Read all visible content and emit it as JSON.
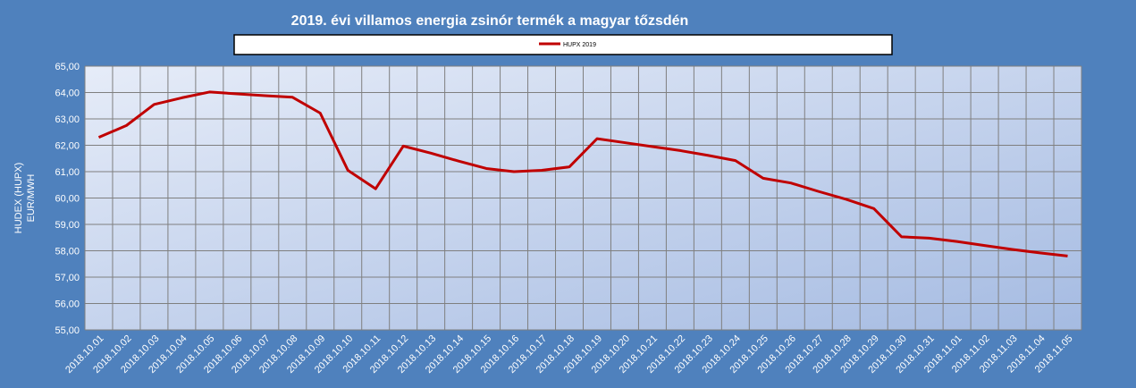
{
  "chart_data": {
    "type": "line",
    "title": "2019. évi villamos energia zsinór termék a magyar tőzsdén",
    "y_label_lines": [
      "HUDEX (HUPX)",
      "EUR/MWH"
    ],
    "categories": [
      "2018.10.01",
      "2018.10.02",
      "2018.10.03",
      "2018.10.04",
      "2018.10.05",
      "2018.10.06",
      "2018.10.07",
      "2018.10.08",
      "2018.10.09",
      "2018.10.10",
      "2018.10.11",
      "2018.10.12",
      "2018.10.13",
      "2018.10.14",
      "2018.10.15",
      "2018.10.16",
      "2018.10.17",
      "2018.10.18",
      "2018.10.19",
      "2018.10.20",
      "2018.10.21",
      "2018.10.22",
      "2018.10.23",
      "2018.10.24",
      "2018.10.25",
      "2018.10.26",
      "2018.10.27",
      "2018.10.28",
      "2018.10.29",
      "2018.10.30",
      "2018.10.31",
      "2018.11.01",
      "2018.11.02",
      "2018.11.03",
      "2018.11.04",
      "2018.11.05"
    ],
    "series": [
      {
        "name": "HUPX 2019",
        "color": "#c00000",
        "values": [
          62.3,
          62.75,
          63.55,
          63.8,
          64.02,
          63.95,
          63.88,
          63.82,
          63.22,
          61.05,
          60.35,
          61.97,
          61.7,
          61.4,
          61.12,
          61.0,
          61.05,
          61.18,
          62.25,
          62.1,
          61.95,
          61.8,
          61.62,
          61.42,
          60.75,
          60.57,
          60.25,
          59.95,
          59.6,
          58.53,
          58.48,
          58.35,
          58.2,
          58.05,
          57.92,
          57.8
        ]
      }
    ],
    "ylim": [
      55,
      65
    ],
    "yticks": [
      {
        "value": 55,
        "label": "55,00"
      },
      {
        "value": 56,
        "label": "56,00"
      },
      {
        "value": 57,
        "label": "57,00"
      },
      {
        "value": 58,
        "label": "58,00"
      },
      {
        "value": 59,
        "label": "59,00"
      },
      {
        "value": 60,
        "label": "60,00"
      },
      {
        "value": 61,
        "label": "61,00"
      },
      {
        "value": 62,
        "label": "62,00"
      },
      {
        "value": 63,
        "label": "63,00"
      },
      {
        "value": 64,
        "label": "64,00"
      },
      {
        "value": 65,
        "label": "65,00"
      }
    ],
    "grid": true
  }
}
